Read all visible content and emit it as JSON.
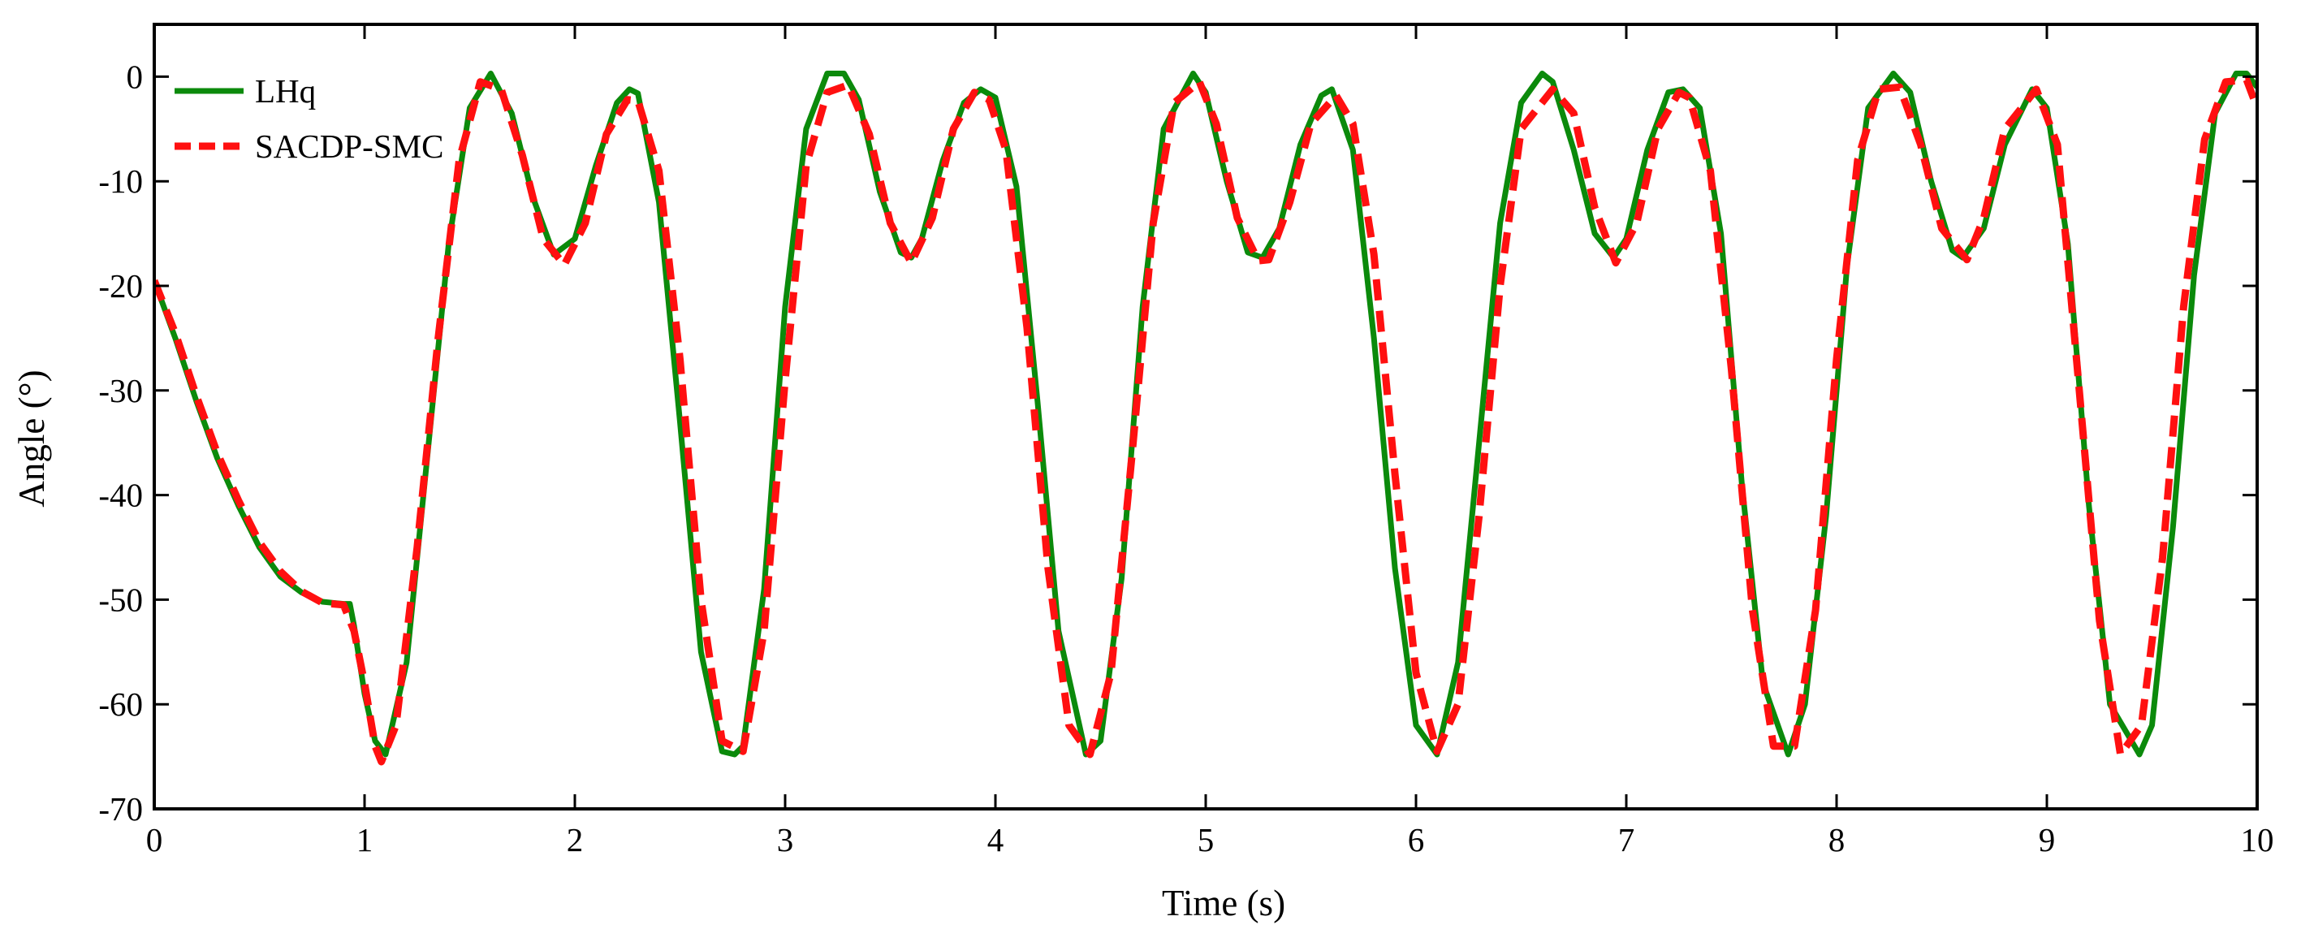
{
  "chart_data": {
    "type": "line",
    "title": "",
    "xlabel": "Time (s)",
    "ylabel": "Angle (°)",
    "xlim": [
      0,
      10
    ],
    "ylim": [
      -70,
      5
    ],
    "xticks": [
      0,
      1,
      2,
      3,
      4,
      5,
      6,
      7,
      8,
      9,
      10
    ],
    "xtick_labels": [
      "0",
      "1",
      "2",
      "3",
      "4",
      "5",
      "6",
      "7",
      "8",
      "9",
      "10"
    ],
    "yticks": [
      0,
      -10,
      -20,
      -30,
      -40,
      -50,
      -60,
      -70
    ],
    "ytick_labels": [
      "0",
      "-10",
      "-20",
      "-30",
      "-40",
      "-50",
      "-60",
      "-70"
    ],
    "grid": false,
    "legend_position": "top-left",
    "series": [
      {
        "name": "LHq",
        "color": "#0b8a0b",
        "style": "solid",
        "x": [
          0,
          0.1,
          0.2,
          0.3,
          0.4,
          0.5,
          0.6,
          0.7,
          0.8,
          0.85,
          0.9,
          0.93,
          0.95,
          1.0,
          1.05,
          1.1,
          1.2,
          1.3,
          1.4,
          1.5,
          1.6,
          1.7,
          1.8,
          1.9,
          2.0,
          2.1,
          2.2,
          2.26,
          2.3,
          2.4,
          2.5,
          2.6,
          2.7,
          2.76,
          2.8,
          2.9,
          3.0,
          3.1,
          3.2,
          3.28,
          3.35,
          3.45,
          3.55,
          3.6,
          3.65,
          3.75,
          3.85,
          3.93,
          4.0,
          4.1,
          4.2,
          4.3,
          4.43,
          4.5,
          4.6,
          4.7,
          4.8,
          4.94,
          5.0,
          5.1,
          5.2,
          5.27,
          5.35,
          5.45,
          5.55,
          5.6,
          5.7,
          5.8,
          5.9,
          6.0,
          6.1,
          6.2,
          6.3,
          6.4,
          6.5,
          6.6,
          6.65,
          6.75,
          6.85,
          6.94,
          7.0,
          7.1,
          7.2,
          7.27,
          7.35,
          7.45,
          7.55,
          7.65,
          7.77,
          7.85,
          7.95,
          8.05,
          8.15,
          8.27,
          8.35,
          8.45,
          8.55,
          8.6,
          8.7,
          8.8,
          8.93,
          9.0,
          9.1,
          9.2,
          9.3,
          9.44,
          9.5,
          9.6,
          9.7,
          9.8,
          9.9,
          9.95,
          10.0
        ],
        "y": [
          -19.5,
          -25,
          -31,
          -36.5,
          -41,
          -45,
          -47.8,
          -49.3,
          -50.2,
          -50.3,
          -50.4,
          -50.4,
          -52.5,
          -59,
          -63.5,
          -64.8,
          -56,
          -36,
          -16,
          -3,
          0.3,
          -3.5,
          -11.5,
          -17,
          -15.5,
          -8.5,
          -2.5,
          -1.2,
          -1.6,
          -12,
          -33,
          -55,
          -64.5,
          -64.8,
          -64,
          -49,
          -22,
          -5,
          0.3,
          0.3,
          -2.2,
          -11,
          -16.8,
          -17.3,
          -15.5,
          -8,
          -2.5,
          -1.2,
          -2,
          -10.5,
          -31,
          -53,
          -64.8,
          -63.5,
          -48,
          -22,
          -5,
          0.3,
          -1.5,
          -10,
          -16.8,
          -17.3,
          -14.5,
          -6.5,
          -1.8,
          -1.2,
          -7,
          -25,
          -47,
          -62,
          -64.8,
          -56,
          -35,
          -14,
          -2.5,
          0.3,
          -0.5,
          -7,
          -15,
          -17.3,
          -15.5,
          -7,
          -1.5,
          -1.2,
          -3,
          -15,
          -39,
          -58,
          -64.8,
          -60,
          -42,
          -18,
          -3,
          0.3,
          -1.5,
          -10,
          -16.6,
          -17.3,
          -14.5,
          -6.5,
          -1.2,
          -3,
          -16,
          -41,
          -60,
          -64.8,
          -62,
          -43,
          -19,
          -3.5,
          0.3,
          0.3,
          -1
        ]
      },
      {
        "name": "SACDP-SMC",
        "color": "#ff1010",
        "style": "dashed",
        "x": [
          0,
          0.1,
          0.2,
          0.3,
          0.4,
          0.5,
          0.6,
          0.7,
          0.8,
          0.85,
          0.9,
          0.95,
          1.0,
          1.05,
          1.08,
          1.15,
          1.25,
          1.35,
          1.45,
          1.55,
          1.65,
          1.75,
          1.85,
          1.95,
          2.05,
          2.15,
          2.25,
          2.3,
          2.4,
          2.5,
          2.6,
          2.7,
          2.8,
          2.9,
          3.0,
          3.1,
          3.2,
          3.3,
          3.4,
          3.5,
          3.6,
          3.7,
          3.8,
          3.9,
          3.97,
          4.05,
          4.15,
          4.25,
          4.35,
          4.45,
          4.55,
          4.65,
          4.75,
          4.85,
          4.97,
          5.05,
          5.15,
          5.25,
          5.3,
          5.4,
          5.5,
          5.62,
          5.7,
          5.8,
          5.9,
          6.0,
          6.1,
          6.2,
          6.3,
          6.4,
          6.5,
          6.65,
          6.75,
          6.85,
          6.95,
          7.05,
          7.15,
          7.25,
          7.3,
          7.4,
          7.5,
          7.6,
          7.7,
          7.8,
          7.9,
          8.0,
          8.1,
          8.2,
          8.3,
          8.4,
          8.5,
          8.62,
          8.7,
          8.8,
          8.95,
          9.05,
          9.15,
          9.25,
          9.35,
          9.45,
          9.55,
          9.65,
          9.75,
          9.85,
          9.95,
          10.0
        ],
        "y": [
          -19.5,
          -24.5,
          -30.5,
          -36,
          -40.5,
          -44.5,
          -47.3,
          -49.2,
          -50.3,
          -50.4,
          -50.5,
          -53,
          -58,
          -64,
          -65.5,
          -62,
          -45,
          -25,
          -8,
          -0.5,
          -1.2,
          -7.5,
          -15.5,
          -18,
          -14,
          -5.5,
          -2.2,
          -2.3,
          -9,
          -27,
          -50,
          -63.5,
          -64.5,
          -53,
          -29,
          -8.5,
          -1.5,
          -0.8,
          -5.5,
          -14,
          -17.8,
          -13.5,
          -5,
          -1.5,
          -2.2,
          -7,
          -24,
          -47,
          -62,
          -64.8,
          -57,
          -36,
          -14,
          -2.5,
          -0.5,
          -4.5,
          -13.5,
          -17.6,
          -17.5,
          -12,
          -4.5,
          -1.8,
          -4.5,
          -17,
          -38,
          -57,
          -64.5,
          -60,
          -42,
          -20,
          -5,
          -1.2,
          -3.5,
          -12.5,
          -17.8,
          -14,
          -5,
          -1.5,
          -2,
          -9,
          -28,
          -51,
          -64,
          -64,
          -51,
          -27,
          -8,
          -1.2,
          -1,
          -6.5,
          -14.5,
          -17.5,
          -13.5,
          -5,
          -1.2,
          -6.5,
          -29,
          -52,
          -64.8,
          -62,
          -46,
          -22,
          -6,
          -0.5,
          -0.3,
          -3
        ]
      }
    ]
  }
}
